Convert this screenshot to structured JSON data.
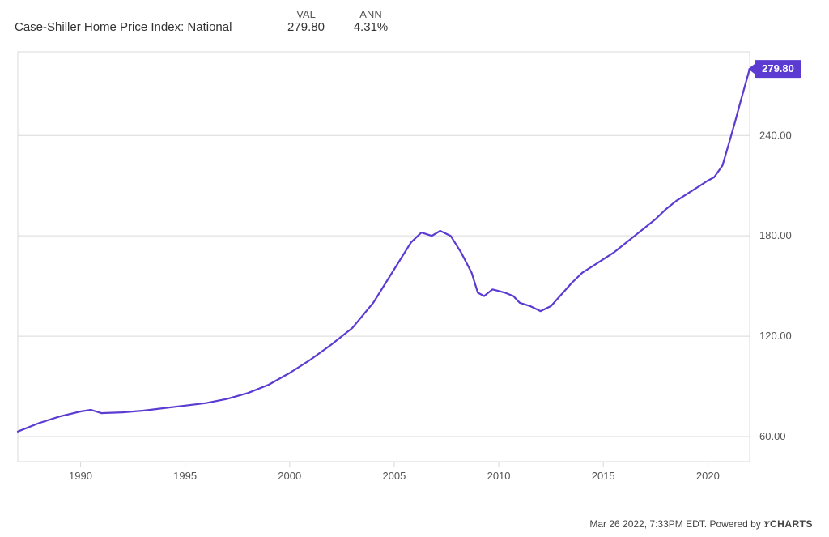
{
  "header": {
    "series_label": "Case-Shiller Home Price Index: National",
    "val_header": "VAL",
    "ann_header": "ANN",
    "val": "279.80",
    "ann": "4.31%"
  },
  "footer": {
    "timestamp": "Mar 26 2022, 7:33PM EDT.",
    "powered_by": "Powered by",
    "brand_y": "Y",
    "brand_rest": "CHARTS"
  },
  "chart": {
    "type": "line",
    "background_color": "#ffffff",
    "grid_color": "#d9d9d9",
    "line_color": "#5b3bd1",
    "line_width": 2.2,
    "badge_color": "#5b3bd1",
    "badge_text_color": "#ffffff",
    "axis_text_color": "#555555",
    "axis_fontsize": 13,
    "x_min": 1987,
    "x_max": 2022,
    "x_ticks": [
      1990,
      1995,
      2000,
      2005,
      2010,
      2015,
      2020
    ],
    "y_min": 45,
    "y_max": 290,
    "y_ticks": [
      60,
      120,
      180,
      240
    ],
    "y_tick_labels": [
      "60.00",
      "120.00",
      "180.00",
      "240.00"
    ],
    "last_value_label": "279.80",
    "data": [
      [
        1987.0,
        63
      ],
      [
        1988.0,
        68
      ],
      [
        1989.0,
        72
      ],
      [
        1990.0,
        75
      ],
      [
        1990.5,
        76
      ],
      [
        1991.0,
        74
      ],
      [
        1992.0,
        74.5
      ],
      [
        1993.0,
        75.5
      ],
      [
        1994.0,
        77
      ],
      [
        1995.0,
        78.5
      ],
      [
        1996.0,
        80
      ],
      [
        1997.0,
        82.5
      ],
      [
        1998.0,
        86
      ],
      [
        1999.0,
        91
      ],
      [
        2000.0,
        98
      ],
      [
        2001.0,
        106
      ],
      [
        2002.0,
        115
      ],
      [
        2003.0,
        125
      ],
      [
        2004.0,
        140
      ],
      [
        2005.0,
        160
      ],
      [
        2005.8,
        176
      ],
      [
        2006.3,
        182
      ],
      [
        2006.8,
        180
      ],
      [
        2007.2,
        183
      ],
      [
        2007.7,
        180
      ],
      [
        2008.2,
        170
      ],
      [
        2008.7,
        158
      ],
      [
        2009.0,
        146
      ],
      [
        2009.3,
        144
      ],
      [
        2009.7,
        148
      ],
      [
        2010.0,
        147
      ],
      [
        2010.3,
        146
      ],
      [
        2010.7,
        144
      ],
      [
        2011.0,
        140
      ],
      [
        2011.5,
        138
      ],
      [
        2012.0,
        135
      ],
      [
        2012.5,
        138
      ],
      [
        2013.0,
        145
      ],
      [
        2013.5,
        152
      ],
      [
        2014.0,
        158
      ],
      [
        2014.5,
        162
      ],
      [
        2015.0,
        166
      ],
      [
        2015.5,
        170
      ],
      [
        2016.0,
        175
      ],
      [
        2016.5,
        180
      ],
      [
        2017.0,
        185
      ],
      [
        2017.5,
        190
      ],
      [
        2018.0,
        196
      ],
      [
        2018.5,
        201
      ],
      [
        2019.0,
        205
      ],
      [
        2019.5,
        209
      ],
      [
        2020.0,
        213
      ],
      [
        2020.3,
        215
      ],
      [
        2020.7,
        222
      ],
      [
        2021.0,
        235
      ],
      [
        2021.3,
        248
      ],
      [
        2021.6,
        262
      ],
      [
        2022.0,
        279.8
      ]
    ]
  }
}
